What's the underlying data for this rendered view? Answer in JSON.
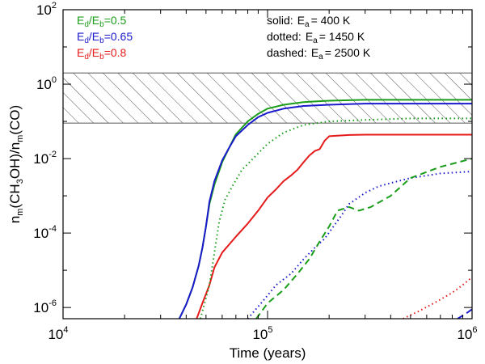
{
  "chart_data": {
    "type": "line",
    "x_scale": "log",
    "y_scale": "log",
    "xlim": [
      10000,
      1000000
    ],
    "ylim": [
      5e-07,
      100
    ],
    "x_ticks": [
      {
        "value": 10000,
        "base": "10",
        "exp": "4"
      },
      {
        "value": 100000,
        "base": "10",
        "exp": "5"
      },
      {
        "value": 1000000,
        "base": "10",
        "exp": "6"
      }
    ],
    "y_ticks": [
      {
        "value": 100,
        "base": "10",
        "exp": "2"
      },
      {
        "value": 1,
        "base": "10",
        "exp": "0"
      },
      {
        "value": 0.01,
        "base": "10",
        "exp": "-2"
      },
      {
        "value": 0.0001,
        "base": "10",
        "exp": "-4"
      },
      {
        "value": 1e-06,
        "base": "10",
        "exp": "-6"
      }
    ],
    "xlabel": "Time (years)",
    "ylabel": {
      "p1": "n",
      "p1sub": "m",
      "p2": "(CH",
      "p2sub": "3",
      "p3": "OH)/n",
      "p3sub": "m",
      "p4": "(CO)"
    },
    "hatched_band": {
      "y_low": 0.09,
      "y_high": 2.0
    },
    "legend_colors": [
      {
        "label_pre": "E",
        "sub1": "d",
        "mid": "/E",
        "sub2": "b",
        "value": "=0.5",
        "color": "#1a9e1a"
      },
      {
        "label_pre": "E",
        "sub1": "d",
        "mid": "/E",
        "sub2": "b",
        "value": "=0.65",
        "color": "#1a1acc"
      },
      {
        "label_pre": "E",
        "sub1": "d",
        "mid": "/E",
        "sub2": "b",
        "value": "=0.8",
        "color": "#e61a1a"
      }
    ],
    "legend_styles": [
      {
        "style": "solid:",
        "e_label": "E",
        "sub": "a",
        "value": "= 400 K"
      },
      {
        "style": "dotted:",
        "e_label": "E",
        "sub": "a",
        "value": "= 1450 K"
      },
      {
        "style": "dashed:",
        "e_label": "E",
        "sub": "a",
        "value": "= 2500 K"
      }
    ],
    "series": [
      {
        "name": "0.5 solid",
        "color": "#1a9e1a",
        "dash": "solid",
        "points": [
          [
            37000,
            5e-07
          ],
          [
            40000,
            1.2e-06
          ],
          [
            43000,
            3.5e-06
          ],
          [
            46000,
            1.3e-05
          ],
          [
            48000,
            4e-05
          ],
          [
            50000,
            0.00015
          ],
          [
            52000,
            0.0006
          ],
          [
            55000,
            0.002
          ],
          [
            60000,
            0.008
          ],
          [
            65000,
            0.02
          ],
          [
            70000,
            0.045
          ],
          [
            80000,
            0.1
          ],
          [
            90000,
            0.16
          ],
          [
            100000,
            0.22
          ],
          [
            120000,
            0.28
          ],
          [
            150000,
            0.33
          ],
          [
            200000,
            0.36
          ],
          [
            300000,
            0.38
          ],
          [
            500000,
            0.38
          ],
          [
            1000000,
            0.38
          ]
        ]
      },
      {
        "name": "0.65 solid",
        "color": "#1a1acc",
        "dash": "solid",
        "points": [
          [
            37000,
            5e-07
          ],
          [
            40000,
            1.2e-06
          ],
          [
            43000,
            3.5e-06
          ],
          [
            46000,
            1.3e-05
          ],
          [
            48000,
            4e-05
          ],
          [
            50000,
            0.00015
          ],
          [
            52000,
            0.0007
          ],
          [
            55000,
            0.0025
          ],
          [
            60000,
            0.009
          ],
          [
            65000,
            0.02
          ],
          [
            70000,
            0.04
          ],
          [
            80000,
            0.08
          ],
          [
            90000,
            0.13
          ],
          [
            100000,
            0.17
          ],
          [
            120000,
            0.22
          ],
          [
            150000,
            0.26
          ],
          [
            200000,
            0.28
          ],
          [
            300000,
            0.3
          ],
          [
            500000,
            0.3
          ],
          [
            1000000,
            0.3
          ]
        ]
      },
      {
        "name": "0.8 solid",
        "color": "#e61a1a",
        "dash": "solid",
        "points": [
          [
            45000,
            5e-07
          ],
          [
            48000,
            1.3e-06
          ],
          [
            52000,
            4e-06
          ],
          [
            55000,
            1.2e-05
          ],
          [
            60000,
            3e-05
          ],
          [
            70000,
            8e-05
          ],
          [
            80000,
            0.00018
          ],
          [
            90000,
            0.0004
          ],
          [
            100000,
            0.0009
          ],
          [
            110000,
            0.0015
          ],
          [
            120000,
            0.0025
          ],
          [
            130000,
            0.0035
          ],
          [
            140000,
            0.005
          ],
          [
            150000,
            0.008
          ],
          [
            160000,
            0.012
          ],
          [
            170000,
            0.016
          ],
          [
            180000,
            0.018
          ],
          [
            190000,
            0.03
          ],
          [
            200000,
            0.04
          ],
          [
            250000,
            0.043
          ],
          [
            300000,
            0.044
          ],
          [
            500000,
            0.044
          ],
          [
            1000000,
            0.044
          ]
        ]
      },
      {
        "name": "0.5 dotted",
        "color": "#1a9e1a",
        "dash": "dotted",
        "points": [
          [
            47000,
            5e-07
          ],
          [
            52000,
            4e-06
          ],
          [
            55000,
            3e-05
          ],
          [
            58000,
            0.0002
          ],
          [
            62000,
            0.0008
          ],
          [
            68000,
            0.002
          ],
          [
            75000,
            0.005
          ],
          [
            85000,
            0.01
          ],
          [
            100000,
            0.025
          ],
          [
            120000,
            0.05
          ],
          [
            150000,
            0.08
          ],
          [
            200000,
            0.1
          ],
          [
            300000,
            0.11
          ],
          [
            500000,
            0.12
          ],
          [
            1000000,
            0.12
          ]
        ]
      },
      {
        "name": "0.65 dotted",
        "color": "#1a1acc",
        "dash": "dotted",
        "points": [
          [
            80000,
            5e-07
          ],
          [
            95000,
            1.5e-06
          ],
          [
            110000,
            4e-06
          ],
          [
            130000,
            8e-06
          ],
          [
            150000,
            2e-05
          ],
          [
            170000,
            4e-05
          ],
          [
            190000,
            7e-05
          ],
          [
            210000,
            0.00015
          ],
          [
            230000,
            0.0003
          ],
          [
            250000,
            0.0006
          ],
          [
            300000,
            0.0012
          ],
          [
            350000,
            0.0018
          ],
          [
            400000,
            0.0022
          ],
          [
            500000,
            0.003
          ],
          [
            700000,
            0.004
          ],
          [
            1000000,
            0.0045
          ]
        ]
      },
      {
        "name": "0.8 dotted",
        "color": "#e61a1a",
        "dash": "dotted",
        "points": [
          [
            460000,
            5e-07
          ],
          [
            550000,
            8e-07
          ],
          [
            650000,
            1.3e-06
          ],
          [
            800000,
            2.5e-06
          ],
          [
            900000,
            4e-06
          ],
          [
            1000000,
            6.5e-06
          ]
        ]
      },
      {
        "name": "0.5 dashed",
        "color": "#1a9e1a",
        "dash": "dashed",
        "points": [
          [
            88000,
            5e-07
          ],
          [
            100000,
            1.3e-06
          ],
          [
            120000,
            3e-06
          ],
          [
            140000,
            8e-06
          ],
          [
            160000,
            2e-05
          ],
          [
            180000,
            6e-05
          ],
          [
            200000,
            0.00015
          ],
          [
            220000,
            0.0004
          ],
          [
            250000,
            0.0005
          ],
          [
            280000,
            0.0004
          ],
          [
            320000,
            0.0005
          ],
          [
            400000,
            0.001
          ],
          [
            500000,
            0.003
          ],
          [
            700000,
            0.006
          ],
          [
            1000000,
            0.01
          ]
        ]
      },
      {
        "name": "0.65 dashed",
        "color": "#1a1acc",
        "dash": "dashed",
        "points": [
          [
            850000,
            5e-07
          ],
          [
            920000,
            6.5e-07
          ],
          [
            1000000,
            9e-07
          ]
        ]
      }
    ]
  }
}
